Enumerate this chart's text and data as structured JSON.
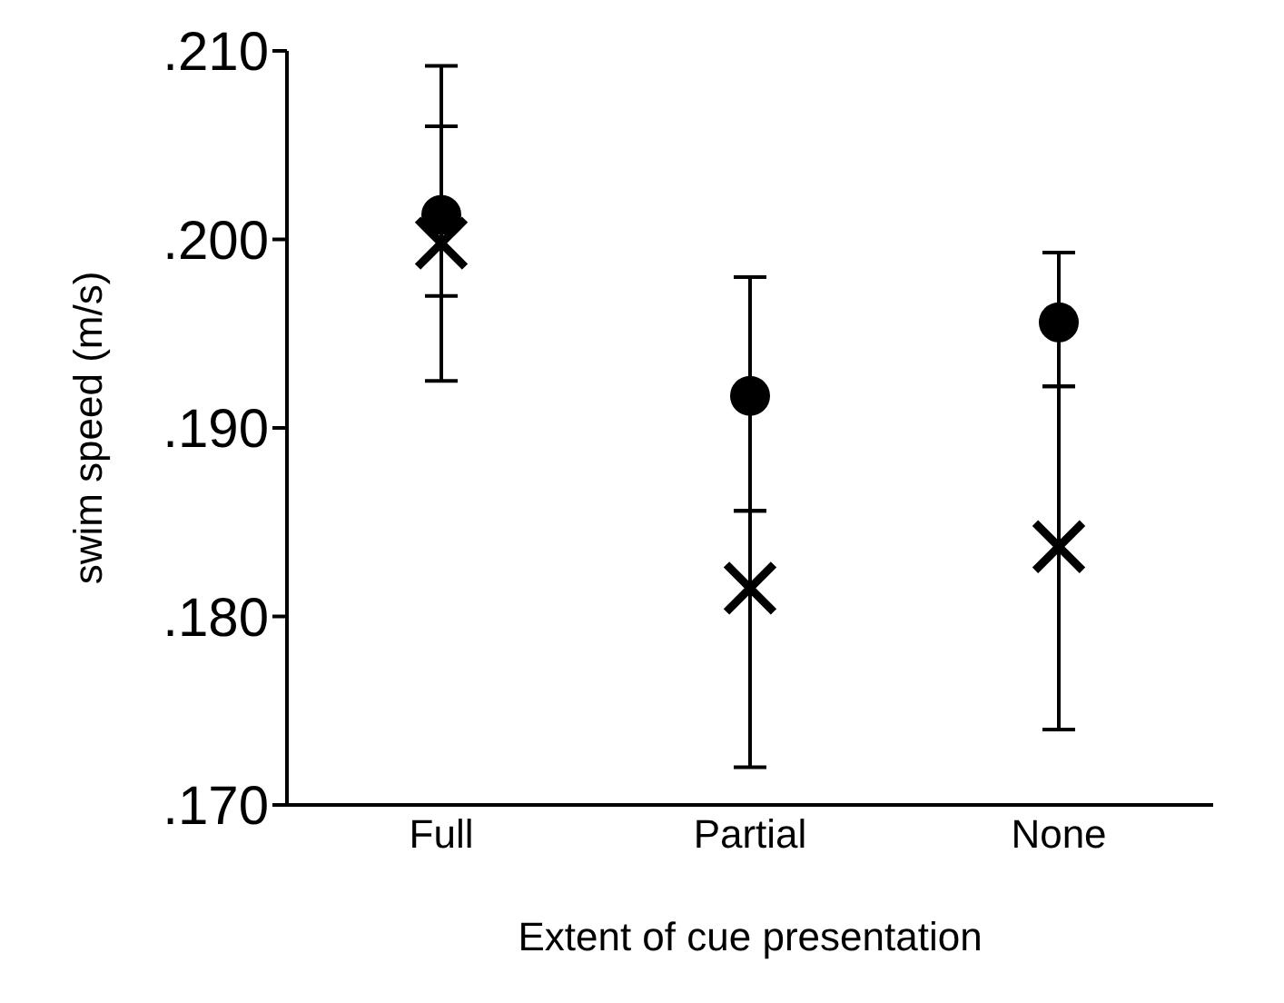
{
  "chart_data": {
    "type": "scatter",
    "xlabel": "Extent of cue presentation",
    "ylabel": "swim speed (m/s)",
    "categories": [
      "Full",
      "Partial",
      "None"
    ],
    "series": [
      {
        "color": "#000000",
        "marker": "circle",
        "values": [
          0.2013,
          0.1917,
          0.1956
        ],
        "errors": [
          [
            0.197,
            0.2092
          ],
          [
            0.1856,
            0.198
          ],
          [
            0.1922,
            0.1993
          ]
        ]
      },
      {
        "color": "#000000",
        "marker": "cross",
        "values": [
          0.1998,
          0.1815,
          0.1837
        ],
        "errors": [
          [
            0.1925,
            0.206
          ],
          [
            0.172,
            0.1856
          ],
          [
            0.174,
            0.1922
          ]
        ]
      }
    ],
    "ylim": [
      0.17,
      0.21
    ],
    "yticks": [
      {
        "value": 0.17,
        "label": ".170"
      },
      {
        "value": 0.18,
        "label": ".180"
      },
      {
        "value": 0.19,
        "label": ".190"
      },
      {
        "value": 0.2,
        "label": ".200"
      },
      {
        "value": 0.21,
        "label": ".210"
      }
    ],
    "grid": false,
    "legend": false
  }
}
